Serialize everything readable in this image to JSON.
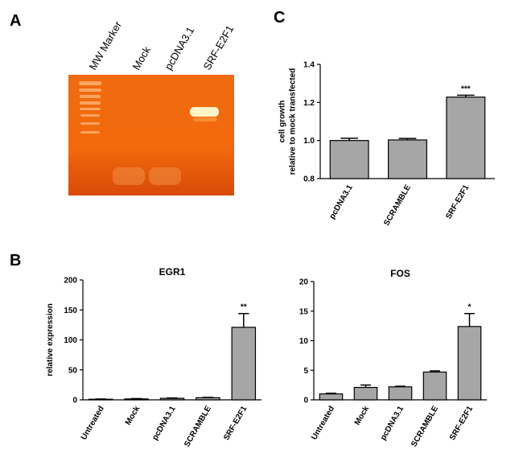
{
  "panel_labels": [
    "A",
    "B",
    "C"
  ],
  "gel": {
    "lanes": [
      "MW Marker",
      "Mock",
      "pcDNA3.1",
      "SRF-E2F1"
    ]
  },
  "chart_data": [
    {
      "type": "bar",
      "y_label": [
        "cell growth",
        "relative to mock transfected"
      ],
      "categories": [
        "pcDNA3.1",
        "SCRAMBLE",
        "SRF-E2F1"
      ],
      "values": [
        1.0,
        1.003,
        1.228
      ],
      "errors": [
        0.012,
        0.008,
        0.01
      ],
      "value_annotations": [
        null,
        null,
        "***"
      ],
      "color": "#a6a6a6",
      "ylim": [
        0.8,
        1.4
      ],
      "yticks": [
        {
          "value": 0.8,
          "label": "0.8"
        },
        {
          "value": 1.0,
          "label": "1.0"
        },
        {
          "value": 1.2,
          "label": "1.2"
        },
        {
          "value": 1.4,
          "label": "1.4"
        }
      ]
    },
    {
      "type": "bar",
      "title": "EGR1",
      "y_label": [
        "relative expression"
      ],
      "categories": [
        "Untreated",
        "Mock",
        "pcDNA3.1",
        "SCRAMBLE",
        "SRF-E2F1"
      ],
      "values": [
        1,
        1.5,
        2.5,
        3.5,
        121
      ],
      "errors": [
        0.3,
        0.5,
        0.5,
        0.5,
        23
      ],
      "value_annotations": [
        null,
        null,
        null,
        null,
        "**"
      ],
      "color": "#a6a6a6",
      "ylim": [
        0,
        200
      ],
      "yticks": [
        0,
        50,
        100,
        150,
        200
      ]
    },
    {
      "type": "bar",
      "title": "FOS",
      "categories": [
        "Untreated",
        "Mock",
        "pcDNA3.1",
        "SCRAMBLE",
        "SRF-E2F1"
      ],
      "values": [
        1,
        2.1,
        2.2,
        4.7,
        12.4
      ],
      "errors": [
        0.1,
        0.4,
        0.1,
        0.2,
        2.2
      ],
      "value_annotations": [
        null,
        null,
        null,
        null,
        "*"
      ],
      "color": "#a6a6a6",
      "ylim": [
        0,
        20
      ],
      "yticks": [
        0,
        5,
        10,
        15,
        20
      ]
    }
  ]
}
